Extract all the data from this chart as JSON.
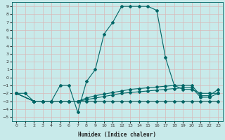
{
  "xlabel": "Humidex (Indice chaleur)",
  "bg_color": "#c8eaea",
  "grid_color": "#b0d8d8",
  "line_color": "#006666",
  "xlim": [
    -0.5,
    23.5
  ],
  "ylim": [
    -5.5,
    9.5
  ],
  "xticks": [
    0,
    1,
    2,
    3,
    4,
    5,
    6,
    7,
    8,
    9,
    10,
    11,
    12,
    13,
    14,
    15,
    16,
    17,
    18,
    19,
    20,
    21,
    22,
    23
  ],
  "yticks": [
    -5,
    -4,
    -3,
    -2,
    -1,
    0,
    1,
    2,
    3,
    4,
    5,
    6,
    7,
    8,
    9
  ],
  "line1_x": [
    0,
    1,
    2,
    3,
    4,
    5,
    6,
    7,
    8,
    9,
    10,
    11,
    12,
    13,
    14,
    15,
    16,
    17,
    18,
    19,
    20,
    21,
    22,
    23
  ],
  "line1_y": [
    -2,
    -2,
    -3,
    -3,
    -3,
    -1,
    -1,
    -4.4,
    -0.5,
    1,
    5.5,
    7,
    9,
    9,
    9,
    9,
    8.5,
    2.5,
    -1,
    -1.5,
    -1.5,
    -2,
    -2,
    -2
  ],
  "line2_x": [
    0,
    2,
    3,
    4,
    5,
    6,
    7,
    8,
    9,
    10,
    11,
    12,
    13,
    14,
    15,
    16,
    17,
    18,
    19,
    20,
    21,
    22,
    23
  ],
  "line2_y": [
    -2,
    -3,
    -3,
    -3,
    -3,
    -3,
    -3,
    -3,
    -3,
    -3,
    -3,
    -3,
    -3,
    -3,
    -3,
    -3,
    -3,
    -3,
    -3,
    -3,
    -3,
    -3,
    -3
  ],
  "line3_x": [
    0,
    2,
    3,
    4,
    5,
    6,
    7,
    8,
    9,
    10,
    11,
    12,
    13,
    14,
    15,
    16,
    17,
    18,
    19,
    20,
    21,
    22,
    23
  ],
  "line3_y": [
    -2,
    -3,
    -3,
    -3,
    -3,
    -3,
    -3,
    -2.8,
    -2.6,
    -2.4,
    -2.2,
    -2.0,
    -1.9,
    -1.8,
    -1.7,
    -1.6,
    -1.5,
    -1.4,
    -1.3,
    -1.3,
    -2.5,
    -2.5,
    -2
  ],
  "line4_x": [
    0,
    2,
    3,
    4,
    5,
    6,
    7,
    8,
    9,
    10,
    11,
    12,
    13,
    14,
    15,
    16,
    17,
    18,
    19,
    20,
    21,
    22,
    23
  ],
  "line4_y": [
    -2,
    -3,
    -3,
    -3,
    -3,
    -3,
    -3,
    -2.6,
    -2.3,
    -2.1,
    -1.9,
    -1.7,
    -1.5,
    -1.4,
    -1.3,
    -1.2,
    -1.1,
    -1.0,
    -1.0,
    -1.0,
    -2.3,
    -2.3,
    -1.5
  ]
}
